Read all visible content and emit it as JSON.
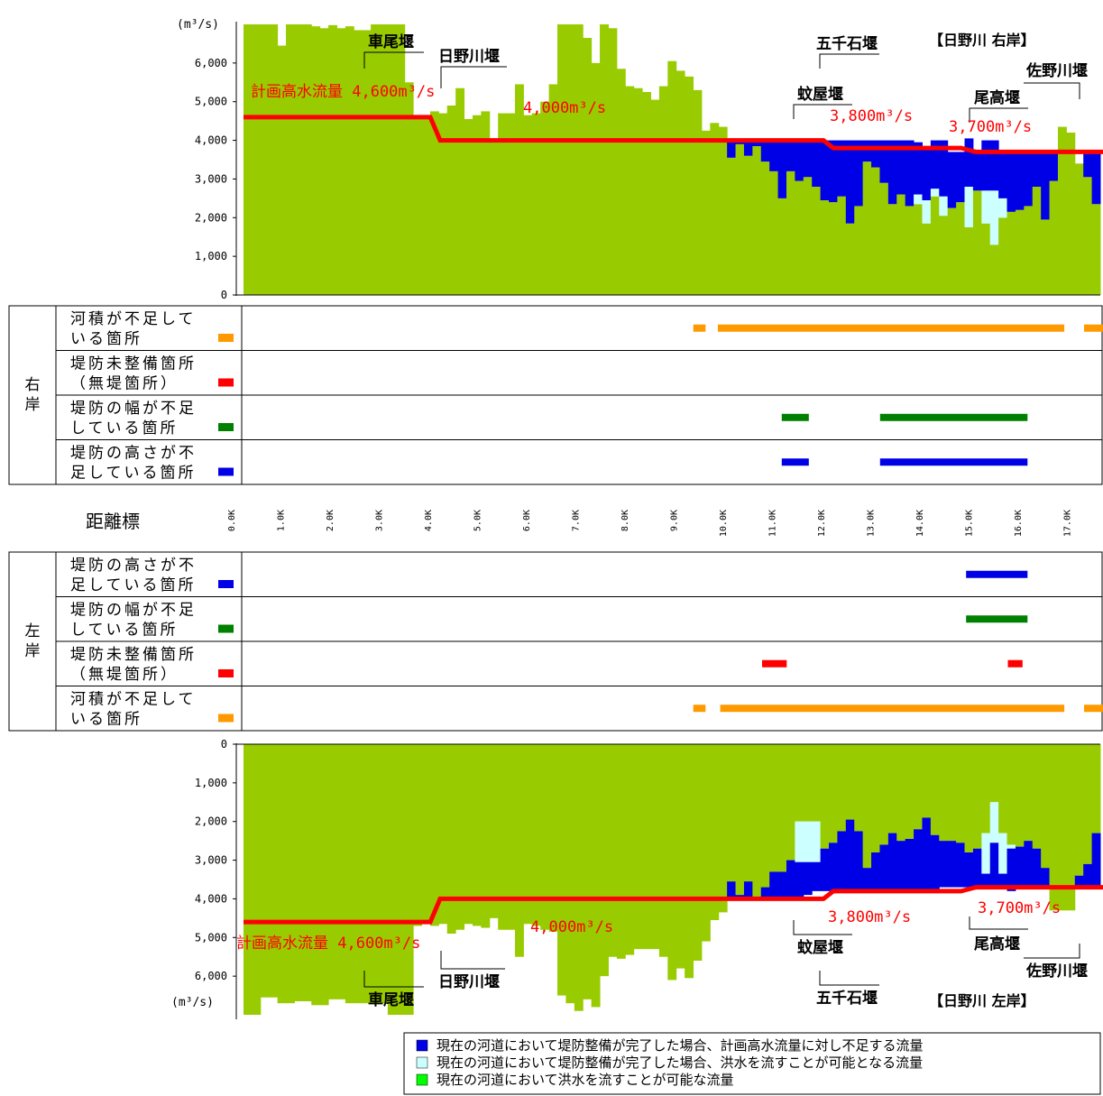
{
  "colors": {
    "green": "#99cc00",
    "blue": "#0000e6",
    "cyan": "#ccffff",
    "red": "#ff0000",
    "orange": "#ff9900",
    "dkgreen": "#008000",
    "legendGreen": "#00ff00"
  },
  "chart_data": [
    {
      "type": "bar",
      "title": "【日野川 右岸】",
      "unit_label": "(m³/s)",
      "x_range_km": [
        0,
        17.6
      ],
      "ylim": [
        0,
        7000
      ],
      "y_ticks": [
        "0",
        "1,000",
        "2,000",
        "3,000",
        "4,000",
        "5,000",
        "6,000"
      ],
      "series": [
        {
          "name": "現在の河道において洪水を流すことが可能な流量",
          "values": [
            7000,
            7000,
            7000,
            7000,
            6450,
            7000,
            7000,
            7000,
            6950,
            6900,
            6980,
            6900,
            6950,
            6850,
            6850,
            7000,
            7000,
            7000,
            7000,
            5500,
            4600,
            4650,
            4750,
            4700,
            4900,
            5350,
            4550,
            4650,
            4750,
            4050,
            4700,
            4700,
            5450,
            4650,
            4700,
            5000,
            5450,
            7000,
            7000,
            7000,
            6650,
            6000,
            7000,
            6900,
            5850,
            5400,
            5350,
            5250,
            5050,
            5400,
            6050,
            5800,
            5650,
            5300,
            4250,
            4450,
            4350,
            3550,
            3900,
            3600,
            3850,
            3450,
            3200,
            2500,
            3200,
            2950,
            3050,
            2800,
            2450,
            2400,
            2550,
            1850,
            2300,
            3450,
            3300,
            2900,
            2350,
            2600,
            2300,
            2350,
            1850,
            2550,
            2050,
            2250,
            2400,
            1750,
            2700,
            1850,
            1300,
            2000,
            2150,
            2200,
            2300,
            2800,
            1950,
            2950,
            4350,
            4200,
            3400,
            3050,
            2350
          ]
        },
        {
          "name": "現在の河道において堤防整備が完了した場合、洪水を流すことが可能となる流量",
          "values": [
            0,
            0,
            0,
            0,
            0,
            0,
            0,
            0,
            0,
            0,
            0,
            0,
            0,
            0,
            0,
            0,
            0,
            0,
            0,
            0,
            0,
            0,
            0,
            0,
            0,
            0,
            0,
            0,
            0,
            0,
            0,
            0,
            0,
            0,
            0,
            0,
            0,
            0,
            0,
            0,
            0,
            0,
            0,
            0,
            0,
            0,
            0,
            0,
            0,
            0,
            0,
            0,
            0,
            0,
            0,
            0,
            0,
            0,
            0,
            0,
            0,
            0,
            0,
            0,
            0,
            0,
            0,
            0,
            0,
            0,
            0,
            0,
            0,
            0,
            0,
            0,
            0,
            0,
            0,
            250,
            600,
            200,
            500,
            0,
            0,
            1050,
            0,
            850,
            1400,
            500,
            0,
            0,
            0,
            0,
            0,
            0,
            0,
            0,
            0,
            0,
            0
          ]
        },
        {
          "name": "現在の河道において堤防整備が完了した場合、計画高水流量に対し不足する流量",
          "values": [
            0,
            0,
            0,
            0,
            0,
            0,
            0,
            0,
            0,
            0,
            0,
            0,
            0,
            0,
            0,
            0,
            0,
            0,
            0,
            0,
            0,
            0,
            0,
            0,
            0,
            0,
            0,
            0,
            0,
            0,
            0,
            0,
            0,
            0,
            0,
            0,
            0,
            0,
            0,
            0,
            0,
            0,
            0,
            0,
            0,
            0,
            0,
            0,
            0,
            0,
            0,
            0,
            0,
            0,
            0,
            0,
            0,
            450,
            100,
            400,
            150,
            550,
            800,
            1500,
            800,
            1050,
            950,
            1200,
            1550,
            1600,
            1450,
            2150,
            1700,
            550,
            700,
            1100,
            1650,
            1400,
            1700,
            1350,
            1350,
            1250,
            1450,
            1450,
            1300,
            1250,
            1000,
            1300,
            1300,
            1200,
            1550,
            1500,
            1400,
            900,
            1750,
            750,
            0,
            0,
            0,
            650,
            1350
          ]
        }
      ],
      "plan_line": {
        "x_km": [
          0,
          3.8,
          4.0,
          11.8,
          12.0,
          14.6,
          14.9,
          17.6
        ],
        "y": [
          4600,
          4600,
          4000,
          4000,
          3800,
          3800,
          3700,
          3700
        ]
      },
      "annotations": {
        "plan": "計画高水流量 4,600m³/s",
        "q4000": "4,000m³/s",
        "q3800": "3,800m³/s",
        "q3700": "3,700m³/s"
      },
      "weirs": [
        "車尾堰",
        "日野川堰",
        "五千石堰",
        "蚊屋堰",
        "尾高堰",
        "佐野川堰"
      ]
    },
    {
      "type": "bar",
      "title": "【日野川 左岸】",
      "unit_label": "(m³/s)",
      "orientation": "inverted",
      "x_range_km": [
        0,
        17.6
      ],
      "ylim": [
        0,
        7000
      ],
      "y_ticks": [
        "0",
        "1,000",
        "2,000",
        "3,000",
        "4,000",
        "5,000",
        "6,000"
      ],
      "series": [
        {
          "name": "現在の河道において洪水を流すことが可能な流量",
          "values": [
            7000,
            7000,
            6550,
            6550,
            6700,
            6700,
            6650,
            6650,
            6750,
            6750,
            6600,
            6600,
            6700,
            6700,
            6700,
            6700,
            6700,
            7000,
            7000,
            7000,
            4700,
            4650,
            4700,
            4650,
            4900,
            4800,
            4650,
            4700,
            4750,
            4500,
            4800,
            4800,
            5500,
            4650,
            4700,
            4800,
            4850,
            6500,
            6700,
            6900,
            6600,
            6800,
            6000,
            5500,
            5550,
            5450,
            5300,
            5300,
            5300,
            5500,
            6100,
            5800,
            6050,
            5600,
            5100,
            4550,
            4350,
            3550,
            3900,
            3550,
            3950,
            3700,
            3300,
            3300,
            3000,
            2000,
            2000,
            2000,
            2700,
            2550,
            2250,
            1950,
            2250,
            3200,
            2800,
            2600,
            2300,
            2500,
            2450,
            2200,
            1900,
            2350,
            2500,
            2500,
            2550,
            2800,
            2700,
            2300,
            1500,
            2300,
            2600,
            2650,
            2500,
            2700,
            3200,
            4300,
            4300,
            4300,
            3400,
            3100,
            2300
          ]
        },
        {
          "name": "現在の河道において堤防整備が完了した場合、洪水を流すことが可能となる流量",
          "values": [
            0,
            0,
            0,
            0,
            0,
            0,
            0,
            0,
            0,
            0,
            0,
            0,
            0,
            0,
            0,
            0,
            0,
            0,
            0,
            0,
            0,
            0,
            0,
            0,
            0,
            0,
            0,
            0,
            0,
            0,
            0,
            0,
            0,
            0,
            0,
            0,
            0,
            0,
            0,
            0,
            0,
            0,
            0,
            0,
            0,
            0,
            0,
            0,
            0,
            0,
            0,
            0,
            0,
            0,
            0,
            0,
            0,
            0,
            0,
            0,
            0,
            0,
            0,
            0,
            0,
            1050,
            1050,
            1050,
            0,
            0,
            0,
            0,
            0,
            0,
            0,
            0,
            0,
            0,
            0,
            0,
            0,
            0,
            0,
            0,
            0,
            0,
            0,
            1050,
            1050,
            1050,
            100,
            0,
            0,
            0,
            0,
            0,
            0,
            0,
            0,
            0,
            0
          ]
        },
        {
          "name": "現在の河道において堤防整備が完了した場合、計画高水流量に対し不足する流量",
          "values": [
            0,
            0,
            0,
            0,
            0,
            0,
            0,
            0,
            0,
            0,
            0,
            0,
            0,
            0,
            0,
            0,
            0,
            0,
            0,
            0,
            0,
            0,
            0,
            0,
            0,
            0,
            0,
            0,
            0,
            0,
            0,
            0,
            0,
            0,
            0,
            0,
            0,
            0,
            0,
            0,
            0,
            0,
            0,
            0,
            0,
            0,
            0,
            0,
            0,
            0,
            0,
            0,
            0,
            0,
            0,
            0,
            0,
            450,
            100,
            450,
            50,
            300,
            700,
            700,
            1000,
            950,
            850,
            750,
            1100,
            1250,
            1550,
            1850,
            1550,
            600,
            1000,
            1200,
            1500,
            1300,
            1350,
            1600,
            1900,
            1450,
            1200,
            1200,
            1150,
            900,
            1000,
            400,
            1200,
            350,
            1100,
            1050,
            1200,
            1000,
            500,
            0,
            0,
            0,
            300,
            600,
            1400
          ]
        }
      ],
      "plan_line": {
        "x_km": [
          0,
          3.8,
          4.0,
          11.8,
          12.0,
          14.6,
          14.9,
          17.6
        ],
        "y": [
          4600,
          4600,
          4000,
          4000,
          3800,
          3800,
          3700,
          3700
        ]
      },
      "annotations": {
        "plan": "計画高水流量 4,600m³/s",
        "q4000": "4,000m³/s",
        "q3800": "3,800m³/s",
        "q3700": "3,700m³/s"
      },
      "weirs": [
        "車尾堰",
        "日野川堰",
        "五千石堰",
        "蚊屋堰",
        "尾高堰",
        "佐野川堰"
      ]
    }
  ],
  "right_bank": {
    "side_label": "右岸",
    "rows": [
      {
        "line1": "河積が不足して",
        "line2": "いる箇所",
        "color": "#ff9900",
        "segments_km": [
          [
            9.15,
            9.4
          ],
          [
            9.65,
            16.7
          ],
          [
            17.1,
            17.65
          ]
        ]
      },
      {
        "line1": "堤防未整備箇所",
        "line2": "（無堤箇所）",
        "color": "#ff0000",
        "segments_km": []
      },
      {
        "line1": "堤防の幅が不足",
        "line2": "している箇所",
        "color": "#008000",
        "segments_km": [
          [
            10.95,
            11.5
          ],
          [
            12.95,
            15.95
          ]
        ]
      },
      {
        "line1": "堤防の高さが不",
        "line2": "足している箇所",
        "color": "#0000e6",
        "segments_km": [
          [
            10.95,
            11.5
          ],
          [
            12.95,
            15.95
          ]
        ]
      }
    ]
  },
  "left_bank": {
    "side_label": "左岸",
    "rows": [
      {
        "line1": "堤防の高さが不",
        "line2": "足している箇所",
        "color": "#0000e6",
        "segments_km": [
          [
            14.7,
            15.95
          ]
        ]
      },
      {
        "line1": "堤防の幅が不足",
        "line2": "している箇所",
        "color": "#008000",
        "segments_km": [
          [
            14.7,
            15.95
          ]
        ]
      },
      {
        "line1": "堤防未整備箇所",
        "line2": "（無堤箇所）",
        "color": "#ff0000",
        "segments_km": [
          [
            10.55,
            11.05
          ],
          [
            15.55,
            15.85
          ]
        ]
      },
      {
        "line1": "河積が不足して",
        "line2": "いる箇所",
        "color": "#ff9900",
        "segments_km": [
          [
            9.15,
            9.4
          ],
          [
            9.7,
            16.7
          ],
          [
            17.1,
            17.65
          ]
        ]
      }
    ]
  },
  "distance": {
    "label": "距離標",
    "ticks": [
      "0.0K",
      "1.0K",
      "2.0K",
      "3.0K",
      "4.0K",
      "5.0K",
      "6.0K",
      "7.0K",
      "8.0K",
      "9.0K",
      "10.0K",
      "11.0K",
      "12.0K",
      "13.0K",
      "14.0K",
      "15.0K",
      "16.0K",
      "17.0K"
    ]
  },
  "legend": [
    {
      "color": "#0000e6",
      "text": "現在の河道において堤防整備が完了した場合、計画高水流量に対し不足する流量"
    },
    {
      "color": "#ccffff",
      "text": "現在の河道において堤防整備が完了した場合、洪水を流すことが可能となる流量"
    },
    {
      "color": "#00ff00",
      "text": "現在の河道において洪水を流すことが可能な流量"
    }
  ]
}
